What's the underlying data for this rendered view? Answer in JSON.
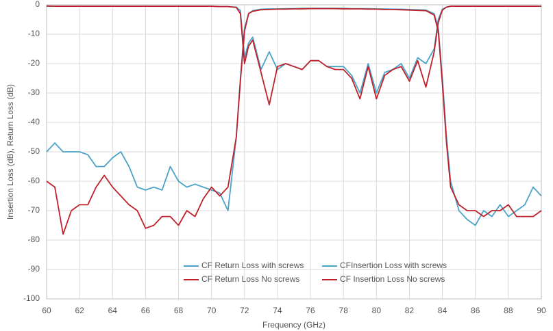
{
  "chart_data": {
    "type": "line",
    "xlabel": "Frequency (GHz)",
    "ylabel": "Insertion Loss (dB), Return Loss (dB)",
    "x": [
      60,
      60.5,
      61,
      61.5,
      62,
      62.5,
      63,
      63.5,
      64,
      64.5,
      65,
      65.5,
      66,
      66.5,
      67,
      67.5,
      68,
      68.5,
      69,
      69.5,
      70,
      70.5,
      71,
      71.5,
      71.75,
      72,
      72.25,
      72.5,
      73,
      73.5,
      74,
      74.5,
      75,
      75.5,
      76,
      76.5,
      77,
      77.5,
      78,
      78.5,
      79,
      79.5,
      80,
      80.5,
      81,
      81.5,
      82,
      82.5,
      83,
      83.5,
      83.75,
      84,
      84.25,
      84.5,
      85,
      85.5,
      86,
      86.5,
      87,
      87.5,
      88,
      88.5,
      89,
      89.5,
      90
    ],
    "series": [
      {
        "name": "CF Return Loss with screws",
        "color": "#4aa3c8",
        "values": [
          -0.5,
          -0.5,
          -0.5,
          -0.5,
          -0.5,
          -0.5,
          -0.5,
          -0.5,
          -0.5,
          -0.5,
          -0.5,
          -0.5,
          -0.5,
          -0.5,
          -0.5,
          -0.5,
          -0.5,
          -0.5,
          -0.5,
          -0.5,
          -0.5,
          -0.6,
          -0.6,
          -0.8,
          -2,
          -18,
          -13,
          -11,
          -22,
          -16,
          -22,
          -20,
          -21,
          -22,
          -19,
          -19,
          -21,
          -21,
          -21,
          -24,
          -30,
          -20,
          -30,
          -23,
          -22,
          -20,
          -25,
          -18,
          -20,
          -15,
          -5,
          -1.5,
          -0.8,
          -0.5,
          -0.5,
          -0.5,
          -0.5,
          -0.5,
          -0.5,
          -0.5,
          -0.5,
          -0.5,
          -0.5,
          -0.5,
          -0.5
        ]
      },
      {
        "name": "CFInsertion Loss with screws",
        "color": "#4aa3c8",
        "values": [
          -50,
          -47,
          -50,
          -50,
          -50,
          -51,
          -55,
          -55,
          -52,
          -50,
          -55,
          -62,
          -63,
          -62,
          -63,
          -55,
          -60,
          -62,
          -61,
          -62,
          -63,
          -64,
          -70,
          -45,
          -25,
          -8,
          -3,
          -2,
          -1.5,
          -1.4,
          -1.4,
          -1.3,
          -1.3,
          -1.2,
          -1.2,
          -1.2,
          -1.2,
          -1.2,
          -1.2,
          -1.3,
          -1.3,
          -1.3,
          -1.4,
          -1.4,
          -1.5,
          -1.5,
          -1.6,
          -1.7,
          -1.8,
          -3,
          -8,
          -25,
          -45,
          -60,
          -70,
          -73,
          -75,
          -70,
          -72,
          -68,
          -72,
          -70,
          -68,
          -62,
          -65
        ]
      },
      {
        "name": "CF Return Loss No screws",
        "color": "#c0202a",
        "values": [
          -0.4,
          -0.5,
          -0.5,
          -0.5,
          -0.5,
          -0.5,
          -0.5,
          -0.5,
          -0.5,
          -0.5,
          -0.5,
          -0.5,
          -0.5,
          -0.5,
          -0.5,
          -0.5,
          -0.5,
          -0.5,
          -0.5,
          -0.5,
          -0.5,
          -0.6,
          -0.6,
          -0.9,
          -3,
          -20,
          -14,
          -12,
          -23,
          -34,
          -21,
          -20,
          -21,
          -22,
          -19,
          -19,
          -21,
          -22,
          -22,
          -25,
          -32,
          -21,
          -32,
          -24,
          -22,
          -21,
          -26,
          -19,
          -28,
          -16,
          -6,
          -1.8,
          -0.8,
          -0.5,
          -0.5,
          -0.5,
          -0.5,
          -0.5,
          -0.5,
          -0.5,
          -0.5,
          -0.5,
          -0.5,
          -0.5,
          -0.5
        ]
      },
      {
        "name": "CF Insertion Loss No screws",
        "color": "#c0202a",
        "values": [
          -60,
          -62,
          -78,
          -70,
          -68,
          -68,
          -62,
          -58,
          -62,
          -65,
          -68,
          -70,
          -76,
          -75,
          -72,
          -72,
          -75,
          -70,
          -72,
          -66,
          -62,
          -65,
          -62,
          -45,
          -26,
          -9,
          -3,
          -2.2,
          -1.7,
          -1.6,
          -1.5,
          -1.5,
          -1.4,
          -1.4,
          -1.3,
          -1.3,
          -1.3,
          -1.3,
          -1.4,
          -1.4,
          -1.4,
          -1.5,
          -1.5,
          -1.6,
          -1.6,
          -1.7,
          -1.8,
          -1.9,
          -2,
          -3.5,
          -9,
          -27,
          -47,
          -62,
          -68,
          -70,
          -70,
          -72,
          -70,
          -70,
          -68,
          -72,
          -72,
          -72,
          -70
        ]
      }
    ],
    "xlim": [
      60,
      90
    ],
    "xticks": [
      60,
      62,
      64,
      66,
      68,
      70,
      72,
      74,
      76,
      78,
      80,
      82,
      84,
      86,
      88,
      90
    ],
    "ylim": [
      -100,
      0
    ],
    "yticks": [
      0,
      -10,
      -20,
      -30,
      -40,
      -50,
      -60,
      -70,
      -80,
      -90,
      -100
    ],
    "grid": true,
    "legend": "bottom"
  }
}
